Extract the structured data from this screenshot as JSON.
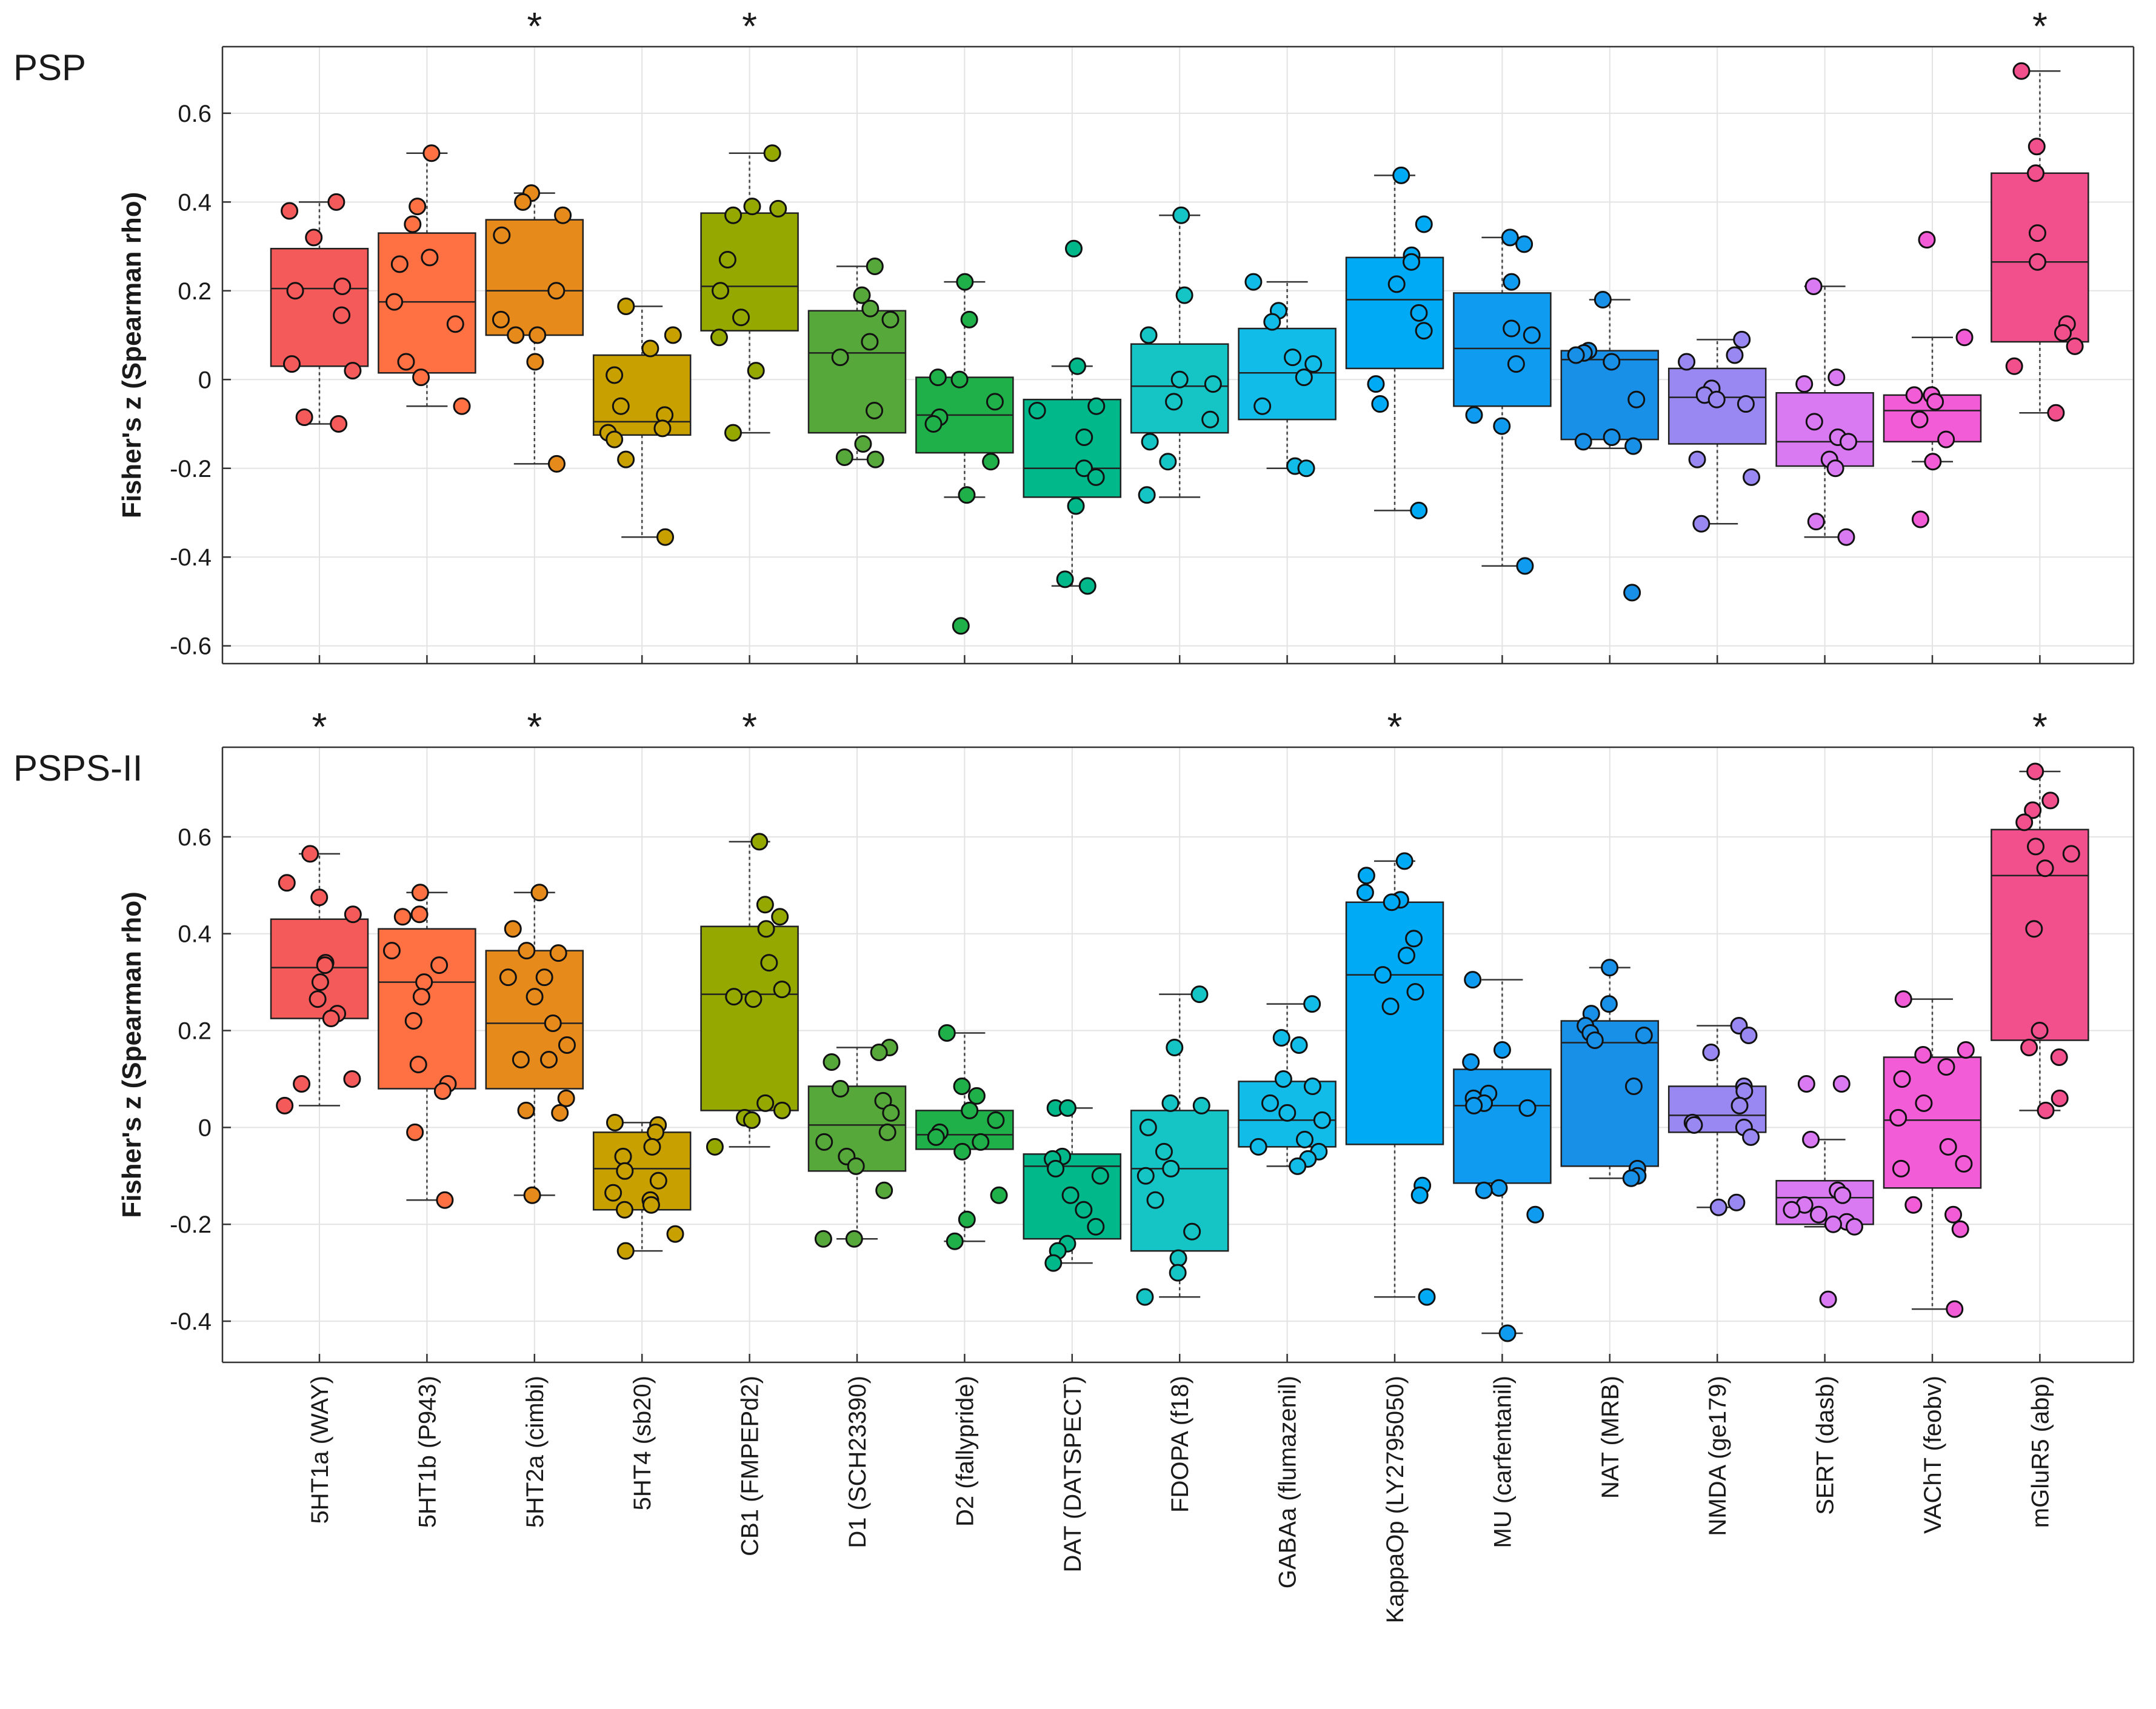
{
  "chart_data": {
    "type": "box",
    "categories": [
      "5HT1a (WAY)",
      "5HT1b (P943)",
      "5HT2a (cimbi)",
      "5HT4 (sb20)",
      "CB1 (FMPEPd2)",
      "D1 (SCH23390)",
      "D2 (fallypride)",
      "DAT (DATSPECT)",
      "FDOPA (f18)",
      "GABAa (flumazenil)",
      "KappaOp (LY2795050)",
      "MU (carfentanil)",
      "NAT (MRB)",
      "NMDA (ge179)",
      "SERT (dasb)",
      "VAChT (feobv)",
      "mGluR5 (abp)"
    ],
    "colors": [
      "#f45a5a",
      "#ff7043",
      "#e68a1c",
      "#c8a000",
      "#94a800",
      "#57a83a",
      "#1fb04a",
      "#00b88a",
      "#15c4c4",
      "#12bce8",
      "#00aaf5",
      "#0f9cf0",
      "#1890e8",
      "#9a88f2",
      "#d97af2",
      "#f25cd6",
      "#f2508c"
    ],
    "panels": [
      {
        "title": "PSP",
        "ylabel": "Fisher's z (Spearman rho)",
        "ylim": [
          -0.64,
          0.75
        ],
        "yticks": [
          -0.6,
          -0.4,
          -0.2,
          0,
          0.2,
          0.4,
          0.6
        ],
        "ytick_labels": [
          "-0.6",
          "-0.4",
          "-0.2",
          "0",
          "0.2",
          "0.4",
          "0.6"
        ],
        "significance_marker": "*",
        "significant": [
          false,
          false,
          true,
          false,
          true,
          false,
          false,
          false,
          false,
          false,
          false,
          false,
          false,
          false,
          false,
          false,
          true
        ],
        "boxes": [
          {
            "q1": 0.03,
            "median": 0.205,
            "q3": 0.295,
            "wlow": -0.1,
            "whigh": 0.4
          },
          {
            "q1": 0.015,
            "median": 0.175,
            "q3": 0.33,
            "wlow": -0.06,
            "whigh": 0.51
          },
          {
            "q1": 0.1,
            "median": 0.2,
            "q3": 0.36,
            "wlow": -0.19,
            "whigh": 0.42
          },
          {
            "q1": -0.125,
            "median": -0.095,
            "q3": 0.055,
            "wlow": -0.355,
            "whigh": 0.165
          },
          {
            "q1": 0.11,
            "median": 0.21,
            "q3": 0.375,
            "wlow": -0.12,
            "whigh": 0.51
          },
          {
            "q1": -0.12,
            "median": 0.06,
            "q3": 0.155,
            "wlow": -0.18,
            "whigh": 0.255
          },
          {
            "q1": -0.165,
            "median": -0.08,
            "q3": 0.005,
            "wlow": -0.265,
            "whigh": 0.22
          },
          {
            "q1": -0.265,
            "median": -0.2,
            "q3": -0.045,
            "wlow": -0.465,
            "whigh": 0.03
          },
          {
            "q1": -0.12,
            "median": -0.015,
            "q3": 0.08,
            "wlow": -0.265,
            "whigh": 0.37
          },
          {
            "q1": -0.09,
            "median": 0.015,
            "q3": 0.115,
            "wlow": -0.2,
            "whigh": 0.22
          },
          {
            "q1": 0.025,
            "median": 0.18,
            "q3": 0.275,
            "wlow": -0.295,
            "whigh": 0.46
          },
          {
            "q1": -0.06,
            "median": 0.07,
            "q3": 0.195,
            "wlow": -0.42,
            "whigh": 0.32
          },
          {
            "q1": -0.135,
            "median": 0.045,
            "q3": 0.065,
            "wlow": -0.155,
            "whigh": 0.18
          },
          {
            "q1": -0.145,
            "median": -0.04,
            "q3": 0.025,
            "wlow": -0.325,
            "whigh": 0.09
          },
          {
            "q1": -0.195,
            "median": -0.14,
            "q3": -0.03,
            "wlow": -0.355,
            "whigh": 0.21
          },
          {
            "q1": -0.14,
            "median": -0.07,
            "q3": -0.035,
            "wlow": -0.185,
            "whigh": 0.095
          },
          {
            "q1": 0.085,
            "median": 0.265,
            "q3": 0.465,
            "wlow": -0.075,
            "whigh": 0.695
          }
        ],
        "points": [
          [
            0.4,
            0.38,
            0.32,
            0.21,
            0.2,
            0.145,
            0.035,
            0.02,
            -0.085,
            -0.1
          ],
          [
            0.51,
            0.39,
            0.35,
            0.275,
            0.26,
            0.175,
            0.125,
            0.04,
            0.005,
            -0.06
          ],
          [
            0.42,
            0.4,
            0.37,
            0.325,
            0.2,
            0.135,
            0.1,
            0.1,
            0.04,
            -0.19
          ],
          [
            0.165,
            0.1,
            0.07,
            0.01,
            -0.06,
            -0.08,
            -0.11,
            -0.12,
            -0.135,
            -0.18,
            -0.355
          ],
          [
            0.51,
            0.39,
            0.385,
            0.37,
            0.27,
            0.2,
            0.14,
            0.095,
            0.02,
            -0.12
          ],
          [
            0.255,
            0.19,
            0.16,
            0.135,
            0.085,
            0.05,
            -0.07,
            -0.145,
            -0.175,
            -0.18
          ],
          [
            0.22,
            0.135,
            0.005,
            0.0,
            -0.05,
            -0.085,
            -0.1,
            -0.185,
            -0.26,
            -0.555
          ],
          [
            0.295,
            0.03,
            -0.06,
            -0.07,
            -0.13,
            -0.2,
            -0.22,
            -0.285,
            -0.45,
            -0.465
          ],
          [
            0.37,
            0.19,
            0.1,
            0.0,
            -0.01,
            -0.05,
            -0.09,
            -0.14,
            -0.185,
            -0.26
          ],
          [
            0.22,
            0.155,
            0.13,
            0.05,
            0.035,
            0.005,
            -0.06,
            -0.195,
            -0.2
          ],
          [
            0.46,
            0.35,
            0.28,
            0.265,
            0.215,
            0.15,
            0.11,
            -0.01,
            -0.055,
            -0.295
          ],
          [
            0.32,
            0.305,
            0.22,
            0.115,
            0.1,
            0.035,
            -0.08,
            -0.105,
            -0.42
          ],
          [
            0.18,
            0.065,
            0.06,
            0.055,
            0.04,
            -0.045,
            -0.13,
            -0.14,
            -0.15,
            -0.48
          ],
          [
            0.09,
            0.055,
            0.04,
            -0.02,
            -0.035,
            -0.045,
            -0.055,
            -0.18,
            -0.22,
            -0.325
          ],
          [
            0.21,
            0.005,
            -0.01,
            -0.095,
            -0.13,
            -0.14,
            -0.18,
            -0.2,
            -0.32,
            -0.355
          ],
          [
            0.315,
            0.095,
            -0.035,
            -0.035,
            -0.05,
            -0.09,
            -0.135,
            -0.185,
            -0.315
          ],
          [
            0.695,
            0.525,
            0.465,
            0.33,
            0.265,
            0.125,
            0.105,
            0.075,
            0.03,
            -0.075
          ]
        ]
      },
      {
        "title": "PSPS-II",
        "ylabel": "Fisher's z (Spearman rho)",
        "ylim": [
          -0.485,
          0.785
        ],
        "yticks": [
          -0.4,
          -0.2,
          0,
          0.2,
          0.4,
          0.6
        ],
        "ytick_labels": [
          "-0.4",
          "-0.2",
          "0",
          "0.2",
          "0.4",
          "0.6"
        ],
        "significance_marker": "*",
        "significant": [
          true,
          false,
          true,
          false,
          true,
          false,
          false,
          false,
          false,
          false,
          true,
          false,
          false,
          false,
          false,
          false,
          true
        ],
        "boxes": [
          {
            "q1": 0.225,
            "median": 0.33,
            "q3": 0.43,
            "wlow": 0.045,
            "whigh": 0.565
          },
          {
            "q1": 0.08,
            "median": 0.3,
            "q3": 0.41,
            "wlow": -0.15,
            "whigh": 0.485
          },
          {
            "q1": 0.08,
            "median": 0.215,
            "q3": 0.365,
            "wlow": -0.14,
            "whigh": 0.485
          },
          {
            "q1": -0.17,
            "median": -0.085,
            "q3": -0.01,
            "wlow": -0.255,
            "whigh": 0.01
          },
          {
            "q1": 0.035,
            "median": 0.275,
            "q3": 0.415,
            "wlow": -0.04,
            "whigh": 0.59
          },
          {
            "q1": -0.09,
            "median": 0.005,
            "q3": 0.085,
            "wlow": -0.23,
            "whigh": 0.165
          },
          {
            "q1": -0.045,
            "median": -0.015,
            "q3": 0.035,
            "wlow": -0.235,
            "whigh": 0.195
          },
          {
            "q1": -0.23,
            "median": -0.08,
            "q3": -0.055,
            "wlow": -0.28,
            "whigh": 0.04
          },
          {
            "q1": -0.255,
            "median": -0.085,
            "q3": 0.035,
            "wlow": -0.35,
            "whigh": 0.275
          },
          {
            "q1": -0.04,
            "median": 0.015,
            "q3": 0.095,
            "wlow": -0.08,
            "whigh": 0.255
          },
          {
            "q1": -0.035,
            "median": 0.315,
            "q3": 0.465,
            "wlow": -0.35,
            "whigh": 0.55
          },
          {
            "q1": -0.115,
            "median": 0.045,
            "q3": 0.12,
            "wlow": -0.425,
            "whigh": 0.305
          },
          {
            "q1": -0.08,
            "median": 0.175,
            "q3": 0.22,
            "wlow": -0.105,
            "whigh": 0.33
          },
          {
            "q1": -0.01,
            "median": 0.025,
            "q3": 0.085,
            "wlow": -0.165,
            "whigh": 0.21
          },
          {
            "q1": -0.2,
            "median": -0.145,
            "q3": -0.11,
            "wlow": -0.205,
            "whigh": -0.025
          },
          {
            "q1": -0.125,
            "median": 0.015,
            "q3": 0.145,
            "wlow": -0.375,
            "whigh": 0.265
          },
          {
            "q1": 0.18,
            "median": 0.52,
            "q3": 0.615,
            "wlow": 0.035,
            "whigh": 0.735
          }
        ],
        "points": [
          [
            0.565,
            0.505,
            0.475,
            0.44,
            0.34,
            0.335,
            0.3,
            0.265,
            0.235,
            0.225,
            0.1,
            0.09,
            0.045
          ],
          [
            0.485,
            0.44,
            0.435,
            0.365,
            0.335,
            0.3,
            0.27,
            0.22,
            0.13,
            0.09,
            0.075,
            -0.01,
            -0.15
          ],
          [
            0.485,
            0.41,
            0.365,
            0.36,
            0.31,
            0.31,
            0.27,
            0.215,
            0.17,
            0.14,
            0.14,
            0.06,
            0.035,
            0.03,
            -0.14
          ],
          [
            0.01,
            0.005,
            -0.01,
            -0.04,
            -0.06,
            -0.09,
            -0.11,
            -0.135,
            -0.15,
            -0.16,
            -0.17,
            -0.22,
            -0.255
          ],
          [
            0.59,
            0.46,
            0.435,
            0.41,
            0.34,
            0.285,
            0.27,
            0.265,
            0.05,
            0.035,
            0.02,
            0.015,
            -0.04
          ],
          [
            0.165,
            0.155,
            0.135,
            0.08,
            0.055,
            0.03,
            -0.01,
            -0.03,
            -0.06,
            -0.08,
            -0.13,
            -0.23,
            -0.23
          ],
          [
            0.195,
            0.085,
            0.065,
            0.035,
            0.015,
            -0.01,
            -0.02,
            -0.03,
            -0.05,
            -0.14,
            -0.19,
            -0.235
          ],
          [
            0.04,
            0.04,
            -0.06,
            -0.065,
            -0.085,
            -0.1,
            -0.14,
            -0.17,
            -0.205,
            -0.24,
            -0.255,
            -0.28
          ],
          [
            0.275,
            0.165,
            0.05,
            0.045,
            0.0,
            -0.05,
            -0.085,
            -0.1,
            -0.15,
            -0.215,
            -0.27,
            -0.3,
            -0.35
          ],
          [
            0.255,
            0.185,
            0.17,
            0.1,
            0.085,
            0.05,
            0.03,
            0.015,
            -0.025,
            -0.04,
            -0.05,
            -0.065,
            -0.08
          ],
          [
            0.55,
            0.52,
            0.485,
            0.47,
            0.465,
            0.39,
            0.355,
            0.315,
            0.28,
            0.25,
            -0.12,
            -0.14,
            -0.35
          ],
          [
            0.305,
            0.16,
            0.135,
            0.07,
            0.06,
            0.05,
            0.045,
            0.04,
            -0.125,
            -0.13,
            -0.18,
            -0.425
          ],
          [
            0.33,
            0.255,
            0.235,
            0.21,
            0.195,
            0.19,
            0.18,
            0.085,
            -0.085,
            -0.1,
            -0.105
          ],
          [
            0.21,
            0.19,
            0.155,
            0.085,
            0.075,
            0.045,
            0.01,
            0.005,
            0.0,
            -0.02,
            -0.155,
            -0.165
          ],
          [
            0.09,
            0.09,
            -0.025,
            -0.13,
            -0.14,
            -0.16,
            -0.17,
            -0.18,
            -0.195,
            -0.2,
            -0.205,
            -0.355
          ],
          [
            0.265,
            0.16,
            0.15,
            0.125,
            0.1,
            0.05,
            0.02,
            -0.04,
            -0.075,
            -0.085,
            -0.16,
            -0.18,
            -0.21,
            -0.375
          ],
          [
            0.735,
            0.675,
            0.655,
            0.63,
            0.58,
            0.565,
            0.535,
            0.41,
            0.2,
            0.165,
            0.145,
            0.06,
            0.035
          ]
        ]
      }
    ]
  }
}
